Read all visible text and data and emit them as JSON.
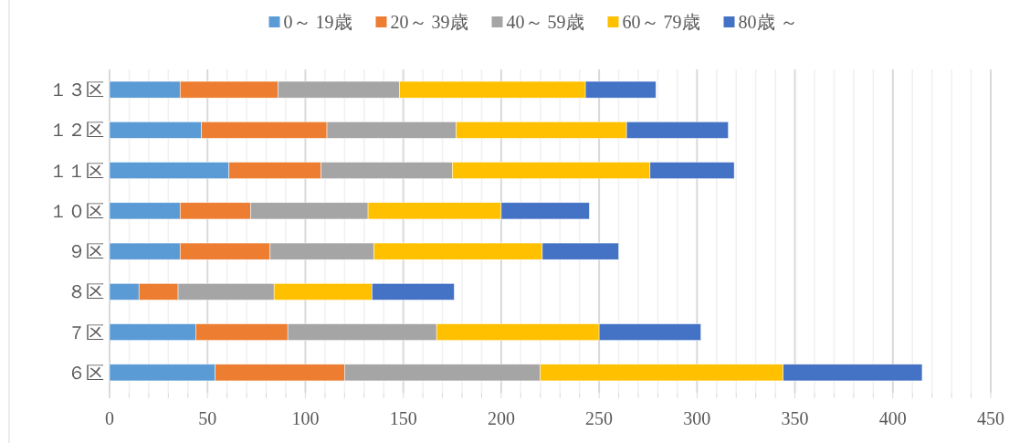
{
  "chart_data": {
    "type": "bar",
    "orientation": "horizontal",
    "stacked": true,
    "categories": [
      "１３区",
      "１２区",
      "１１区",
      "１０区",
      "９区",
      "８区",
      "７区",
      "６区"
    ],
    "series": [
      {
        "name": "0～ 19歳",
        "color": "#5b9bd5",
        "values": [
          36,
          47,
          61,
          36,
          36,
          15,
          44,
          54
        ]
      },
      {
        "name": "20～ 39歳",
        "color": "#ed7d31",
        "values": [
          50,
          64,
          47,
          36,
          46,
          20,
          47,
          66
        ]
      },
      {
        "name": "40～ 59歳",
        "color": "#a5a5a5",
        "values": [
          62,
          66,
          67,
          60,
          53,
          49,
          76,
          100
        ]
      },
      {
        "name": "60～ 79歳",
        "color": "#ffc000",
        "values": [
          95,
          87,
          101,
          68,
          86,
          50,
          83,
          124
        ]
      },
      {
        "name": "80歳 ～",
        "color": "#4472c4",
        "values": [
          36,
          52,
          43,
          45,
          39,
          42,
          52,
          71
        ]
      }
    ],
    "xlim": [
      0,
      450
    ],
    "xticks": [
      0,
      {
        "value": 10,
        "label": null
      },
      {
        "value": 20,
        "label": null
      },
      {
        "value": 30,
        "label": null
      },
      {
        "value": 40,
        "label": null
      },
      50,
      {
        "value": 60,
        "label": null
      },
      {
        "value": 70,
        "label": null
      },
      {
        "value": 80,
        "label": null
      },
      {
        "value": 90,
        "label": null
      },
      100,
      {
        "value": 110,
        "label": null
      },
      {
        "value": 120,
        "label": null
      },
      {
        "value": 130,
        "label": null
      },
      {
        "value": 140,
        "label": null
      },
      150,
      {
        "value": 160,
        "label": null
      },
      {
        "value": 170,
        "label": null
      },
      {
        "value": 180,
        "label": null
      },
      {
        "value": 190,
        "label": null
      },
      200,
      {
        "value": 210,
        "label": null
      },
      {
        "value": 220,
        "label": null
      },
      {
        "value": 230,
        "label": null
      },
      {
        "value": 240,
        "label": null
      },
      250,
      {
        "value": 260,
        "label": null
      },
      {
        "value": 270,
        "label": null
      },
      {
        "value": 280,
        "label": null
      },
      {
        "value": 290,
        "label": null
      },
      300,
      {
        "value": 310,
        "label": null
      },
      {
        "value": 320,
        "label": null
      },
      {
        "value": 330,
        "label": null
      },
      {
        "value": 340,
        "label": null
      },
      350,
      {
        "value": 360,
        "label": null
      },
      {
        "value": 370,
        "label": null
      },
      {
        "value": 380,
        "label": null
      },
      {
        "value": 390,
        "label": null
      },
      400,
      {
        "value": 410,
        "label": null
      },
      {
        "value": 420,
        "label": null
      },
      {
        "value": 430,
        "label": null
      },
      {
        "value": 440,
        "label": null
      },
      450
    ],
    "grid": "x",
    "legend": "top"
  }
}
